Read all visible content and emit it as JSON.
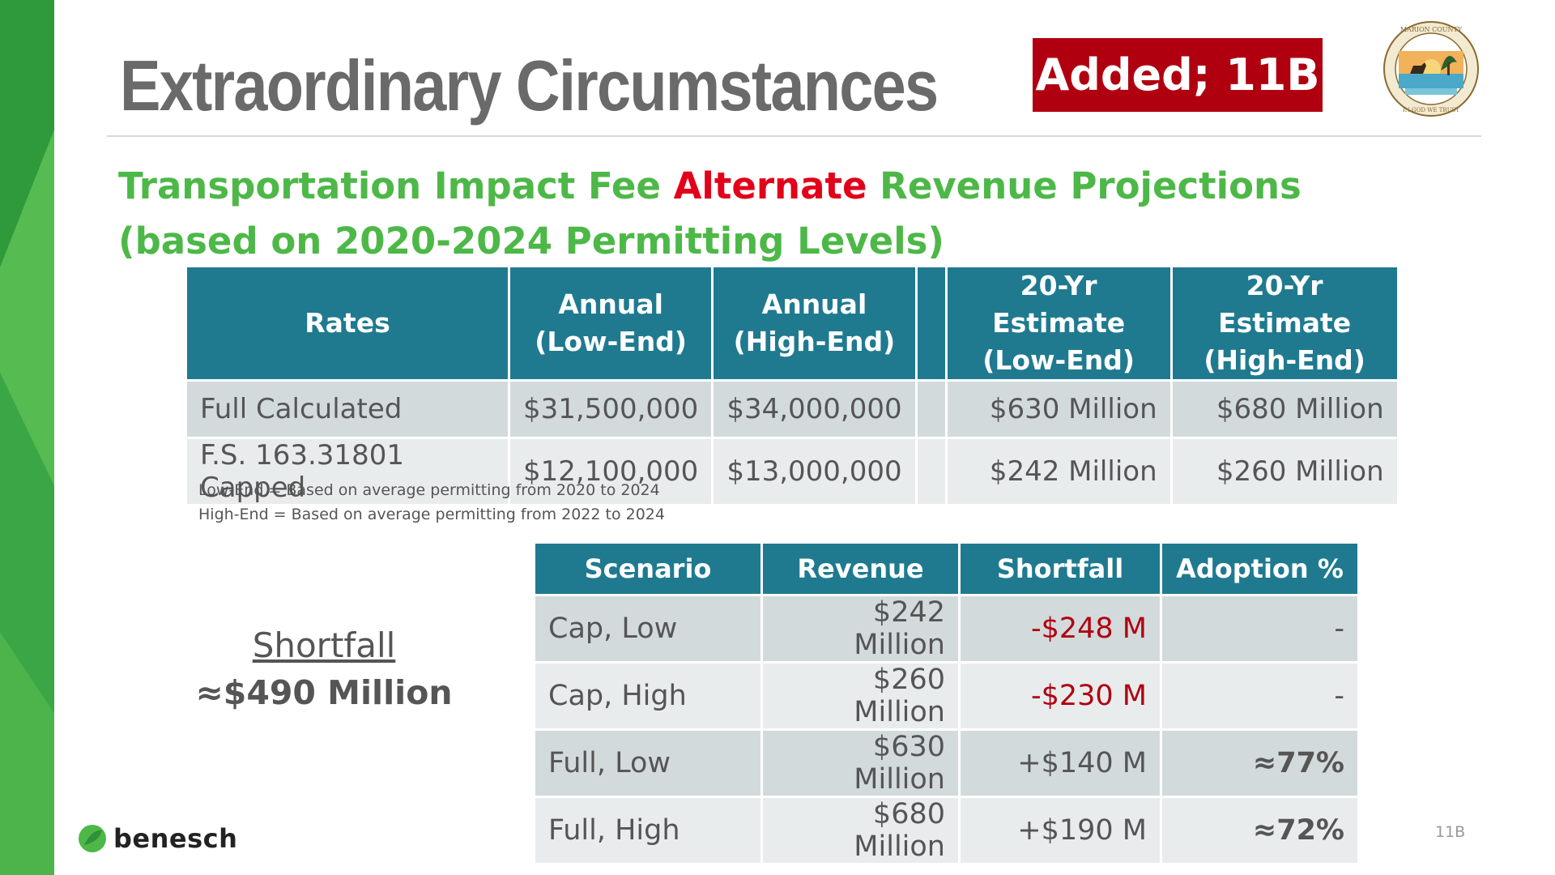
{
  "slide": {
    "title": "Extraordinary Circumstances",
    "badge": "Added; 11B",
    "subtitle": {
      "line1_part1": "Transportation Impact Fee ",
      "line1_highlight": "Alternate",
      "line1_part2": " Revenue Projections",
      "line2": "(based on 2020-2024 Permitting Levels)"
    },
    "seal_text_top": "MARION COUNTY, FLORIDA",
    "seal_text_bottom": "IN GOD WE TRUST",
    "logo_text": "benesch",
    "page_number": "11B"
  },
  "rates_table": {
    "headers": [
      {
        "line1": "Rates",
        "line2": ""
      },
      {
        "line1": "Annual",
        "line2": "(Low-End)"
      },
      {
        "line1": "Annual",
        "line2": "(High-End)"
      },
      {
        "line1": "",
        "line2": ""
      },
      {
        "line1": "20-Yr Estimate",
        "line2": "(Low-End)"
      },
      {
        "line1": "20-Yr Estimate",
        "line2": "(High-End)"
      }
    ],
    "rows": [
      {
        "rate": "Full Calculated",
        "annual_low": "$31,500,000",
        "annual_high": "$34,000,000",
        "est_low": "$630 Million",
        "est_high": "$680 Million"
      },
      {
        "rate": "F.S. 163.31801 Capped",
        "annual_low": "$12,100,000",
        "annual_high": "$13,000,000",
        "est_low": "$242 Million",
        "est_high": "$260 Million"
      }
    ],
    "notes": [
      "Low-End = Based on average permitting from 2020 to 2024",
      "High-End = Based on average permitting from 2022 to 2024"
    ]
  },
  "shortfall": {
    "label": "Shortfall",
    "value": "≈$490 Million"
  },
  "scenario_table": {
    "headers": [
      "Scenario",
      "Revenue",
      "Shortfall",
      "Adoption %"
    ],
    "rows": [
      {
        "scenario": "Cap, Low",
        "revenue": "$242 Million",
        "shortfall": "-$248 M",
        "adoption": "-"
      },
      {
        "scenario": "Cap, High",
        "revenue": "$260 Million",
        "shortfall": "-$230 M",
        "adoption": "-"
      },
      {
        "scenario": "Full, Low",
        "revenue": "$630 Million",
        "shortfall": "+$140 M",
        "adoption": "≈77%"
      },
      {
        "scenario": "Full, High",
        "revenue": "$680 Million",
        "shortfall": "+$190 M",
        "adoption": "≈72%"
      }
    ]
  },
  "colors": {
    "teal_header": "#1f7a90",
    "green_text": "#4db848",
    "red_accent": "#e2001a",
    "badge_red": "#b00010"
  }
}
